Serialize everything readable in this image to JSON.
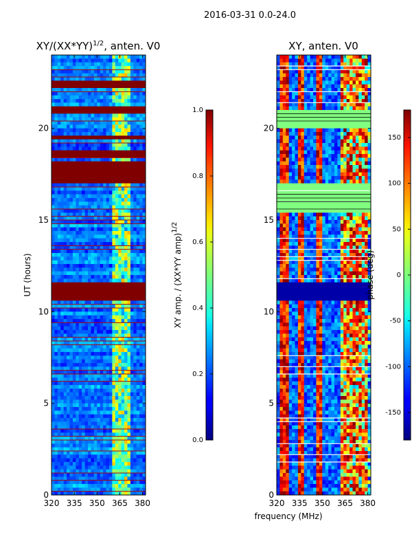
{
  "suptitle": "2016-03-31 0.0-24.0",
  "chart_data": [
    {
      "type": "heatmap",
      "title": "XY/(XX*YY)",
      "title_sup": "1/2",
      "title_suffix": ", anten. V0",
      "xlabel": "",
      "ylabel": "UT (hours)",
      "xlim": [
        320,
        382
      ],
      "ylim": [
        0,
        24
      ],
      "xticks": [
        "320",
        "335",
        "350",
        "365",
        "380"
      ],
      "yticks": [
        "0",
        "5",
        "10",
        "15",
        "20"
      ],
      "colorbar": {
        "label": "XY amp. / (XX*YY amp)",
        "label_sup": "1/2",
        "range": [
          0.0,
          1.0
        ],
        "ticks": [
          "0.0",
          "0.2",
          "0.4",
          "0.6",
          "0.8",
          "1.0"
        ],
        "colormap": "jet"
      },
      "saturated_bands_hours": [
        [
          10.6,
          11.5
        ],
        [
          17.1,
          17.3
        ],
        [
          17.5,
          18.1
        ],
        [
          18.5,
          18.7
        ],
        [
          19.5,
          19.6
        ],
        [
          20.9,
          21.2
        ],
        [
          22.3,
          22.6
        ]
      ],
      "bright_band_mhz": [
        361,
        372
      ]
    },
    {
      "type": "heatmap",
      "title": "XY, anten. V0",
      "xlabel": "frequency (MHz)",
      "ylabel": "",
      "xlim": [
        320,
        382
      ],
      "ylim": [
        0,
        24
      ],
      "xticks": [
        "320",
        "335",
        "350",
        "365",
        "380"
      ],
      "yticks": [
        "0",
        "5",
        "10",
        "15",
        "20"
      ],
      "colorbar": {
        "label": "phase (deg)",
        "range": [
          -180,
          180
        ],
        "ticks": [
          "-150",
          "-100",
          "-50",
          "0",
          "50",
          "100",
          "150"
        ],
        "colormap": "jet"
      },
      "hot_stripes_mhz": [
        [
          322,
          328
        ],
        [
          334,
          338
        ],
        [
          346,
          349
        ],
        [
          362,
          380
        ]
      ],
      "flat_bands_hours": [
        [
          15.3,
          17.0
        ],
        [
          20.0,
          21.0
        ]
      ],
      "masked_band_hours": [
        10.6,
        11.5
      ]
    }
  ]
}
